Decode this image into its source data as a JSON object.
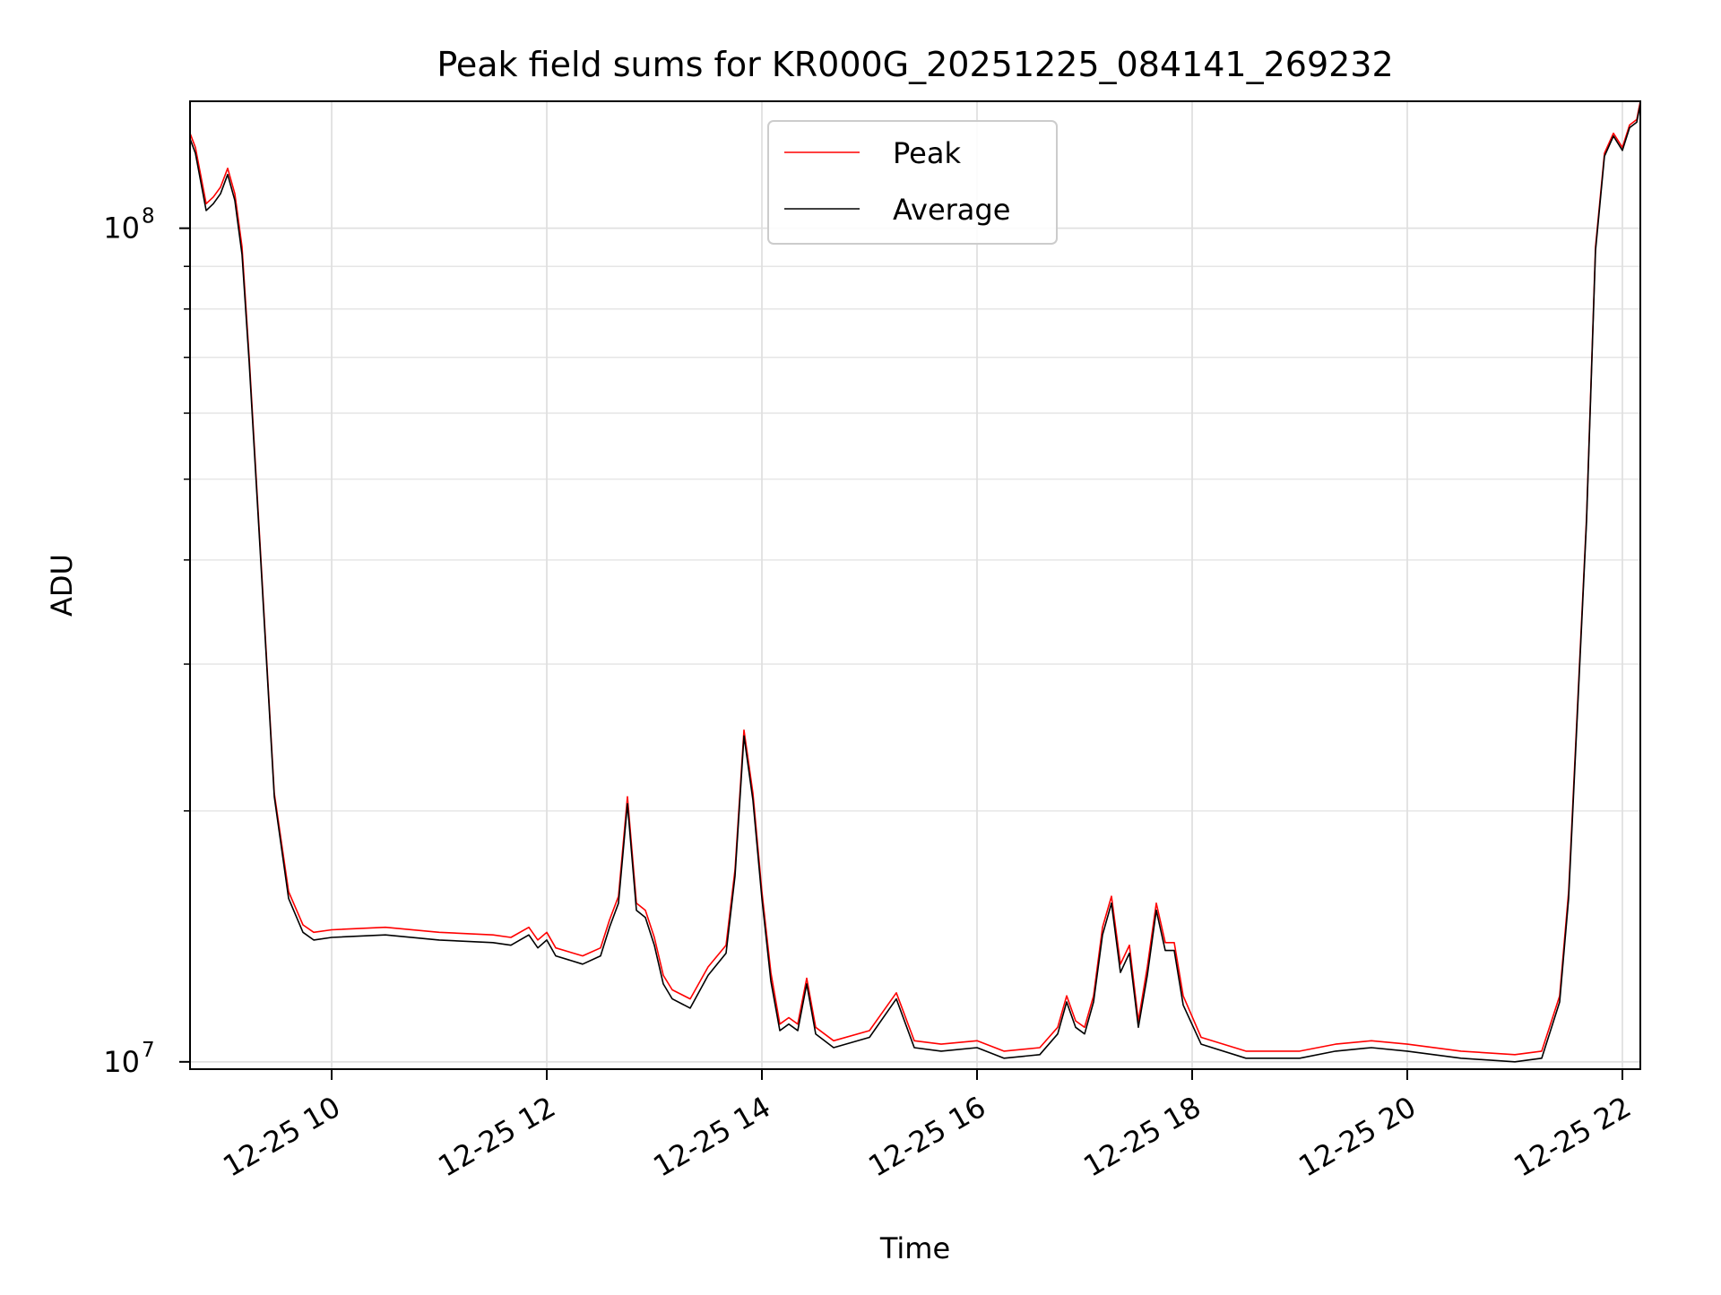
{
  "chart_data": {
    "type": "line",
    "title": "Peak field sums for KR000G_20251225_084141_269232",
    "xlabel": "Time",
    "ylabel": "ADU",
    "yscale": "log",
    "ylim": [
      9800000,
      142000000
    ],
    "xlim": [
      "2025-12-25 08:41",
      "2025-12-25 22:10"
    ],
    "x_ticks": [
      {
        "value": "2025-12-25 10:00",
        "label": "12-25 10"
      },
      {
        "value": "2025-12-25 12:00",
        "label": "12-25 12"
      },
      {
        "value": "2025-12-25 14:00",
        "label": "12-25 14"
      },
      {
        "value": "2025-12-25 16:00",
        "label": "12-25 16"
      },
      {
        "value": "2025-12-25 18:00",
        "label": "12-25 18"
      },
      {
        "value": "2025-12-25 20:00",
        "label": "12-25 20"
      },
      {
        "value": "2025-12-25 22:00",
        "label": "12-25 22"
      }
    ],
    "y_ticks": [
      {
        "value": 10000000,
        "base": "10",
        "exp": "7"
      },
      {
        "value": 100000000,
        "base": "10",
        "exp": "8"
      }
    ],
    "grid": true,
    "legend": "top-center",
    "colors": {
      "Peak": "#ff0000",
      "Average": "#000000"
    },
    "series": [
      {
        "name": "Peak",
        "x": [
          "2025-12-25 08:41",
          "2025-12-25 08:44",
          "2025-12-25 08:50",
          "2025-12-25 08:54",
          "2025-12-25 08:58",
          "2025-12-25 09:02",
          "2025-12-25 09:06",
          "2025-12-25 09:10",
          "2025-12-25 09:14",
          "2025-12-25 09:20",
          "2025-12-25 09:28",
          "2025-12-25 09:36",
          "2025-12-25 09:44",
          "2025-12-25 09:50",
          "2025-12-25 10:00",
          "2025-12-25 10:30",
          "2025-12-25 11:00",
          "2025-12-25 11:30",
          "2025-12-25 11:40",
          "2025-12-25 11:50",
          "2025-12-25 11:55",
          "2025-12-25 12:00",
          "2025-12-25 12:05",
          "2025-12-25 12:20",
          "2025-12-25 12:30",
          "2025-12-25 12:35",
          "2025-12-25 12:40",
          "2025-12-25 12:45",
          "2025-12-25 12:50",
          "2025-12-25 12:55",
          "2025-12-25 13:00",
          "2025-12-25 13:05",
          "2025-12-25 13:10",
          "2025-12-25 13:20",
          "2025-12-25 13:30",
          "2025-12-25 13:40",
          "2025-12-25 13:45",
          "2025-12-25 13:50",
          "2025-12-25 13:55",
          "2025-12-25 14:00",
          "2025-12-25 14:05",
          "2025-12-25 14:10",
          "2025-12-25 14:15",
          "2025-12-25 14:20",
          "2025-12-25 14:25",
          "2025-12-25 14:30",
          "2025-12-25 14:40",
          "2025-12-25 15:00",
          "2025-12-25 15:15",
          "2025-12-25 15:25",
          "2025-12-25 15:40",
          "2025-12-25 16:00",
          "2025-12-25 16:15",
          "2025-12-25 16:35",
          "2025-12-25 16:45",
          "2025-12-25 16:50",
          "2025-12-25 16:55",
          "2025-12-25 17:00",
          "2025-12-25 17:05",
          "2025-12-25 17:10",
          "2025-12-25 17:15",
          "2025-12-25 17:20",
          "2025-12-25 17:25",
          "2025-12-25 17:30",
          "2025-12-25 17:35",
          "2025-12-25 17:40",
          "2025-12-25 17:45",
          "2025-12-25 17:50",
          "2025-12-25 17:55",
          "2025-12-25 18:05",
          "2025-12-25 18:30",
          "2025-12-25 19:00",
          "2025-12-25 19:20",
          "2025-12-25 19:40",
          "2025-12-25 20:00",
          "2025-12-25 20:30",
          "2025-12-25 21:00",
          "2025-12-25 21:15",
          "2025-12-25 21:25",
          "2025-12-25 21:30",
          "2025-12-25 21:40",
          "2025-12-25 21:45",
          "2025-12-25 21:50",
          "2025-12-25 21:55",
          "2025-12-25 22:00",
          "2025-12-25 22:04",
          "2025-12-25 22:08",
          "2025-12-25 22:10"
        ],
        "y": [
          130000000,
          125000000,
          107000000,
          109000000,
          112000000,
          118000000,
          110000000,
          95000000,
          70000000,
          42000000,
          21000000,
          16000000,
          14600000,
          14300000,
          14400000,
          14500000,
          14300000,
          14200000,
          14100000,
          14500000,
          14000000,
          14300000,
          13700000,
          13400000,
          13700000,
          14800000,
          15800000,
          20800000,
          15500000,
          15200000,
          14100000,
          12700000,
          12200000,
          11900000,
          13000000,
          13800000,
          17000000,
          25000000,
          21000000,
          16000000,
          12800000,
          11100000,
          11300000,
          11100000,
          12600000,
          11000000,
          10600000,
          10900000,
          12100000,
          10600000,
          10500000,
          10600000,
          10300000,
          10400000,
          11000000,
          12000000,
          11200000,
          11000000,
          12000000,
          14500000,
          15800000,
          13100000,
          13800000,
          11200000,
          13000000,
          15500000,
          13900000,
          13900000,
          12000000,
          10700000,
          10300000,
          10300000,
          10500000,
          10600000,
          10500000,
          10300000,
          10200000,
          10300000,
          12000000,
          16000000,
          45000000,
          95000000,
          123000000,
          130000000,
          125000000,
          133000000,
          135000000,
          142000000
        ]
      },
      {
        "name": "Average",
        "x": [
          "2025-12-25 08:41",
          "2025-12-25 08:44",
          "2025-12-25 08:50",
          "2025-12-25 08:54",
          "2025-12-25 08:58",
          "2025-12-25 09:02",
          "2025-12-25 09:06",
          "2025-12-25 09:10",
          "2025-12-25 09:14",
          "2025-12-25 09:20",
          "2025-12-25 09:28",
          "2025-12-25 09:36",
          "2025-12-25 09:44",
          "2025-12-25 09:50",
          "2025-12-25 10:00",
          "2025-12-25 10:30",
          "2025-12-25 11:00",
          "2025-12-25 11:30",
          "2025-12-25 11:40",
          "2025-12-25 11:50",
          "2025-12-25 11:55",
          "2025-12-25 12:00",
          "2025-12-25 12:05",
          "2025-12-25 12:20",
          "2025-12-25 12:30",
          "2025-12-25 12:35",
          "2025-12-25 12:40",
          "2025-12-25 12:45",
          "2025-12-25 12:50",
          "2025-12-25 12:55",
          "2025-12-25 13:00",
          "2025-12-25 13:05",
          "2025-12-25 13:10",
          "2025-12-25 13:20",
          "2025-12-25 13:30",
          "2025-12-25 13:40",
          "2025-12-25 13:45",
          "2025-12-25 13:50",
          "2025-12-25 13:55",
          "2025-12-25 14:00",
          "2025-12-25 14:05",
          "2025-12-25 14:10",
          "2025-12-25 14:15",
          "2025-12-25 14:20",
          "2025-12-25 14:25",
          "2025-12-25 14:30",
          "2025-12-25 14:40",
          "2025-12-25 15:00",
          "2025-12-25 15:15",
          "2025-12-25 15:25",
          "2025-12-25 15:40",
          "2025-12-25 16:00",
          "2025-12-25 16:15",
          "2025-12-25 16:35",
          "2025-12-25 16:45",
          "2025-12-25 16:50",
          "2025-12-25 16:55",
          "2025-12-25 17:00",
          "2025-12-25 17:05",
          "2025-12-25 17:10",
          "2025-12-25 17:15",
          "2025-12-25 17:20",
          "2025-12-25 17:25",
          "2025-12-25 17:30",
          "2025-12-25 17:35",
          "2025-12-25 17:40",
          "2025-12-25 17:45",
          "2025-12-25 17:50",
          "2025-12-25 17:55",
          "2025-12-25 18:05",
          "2025-12-25 18:30",
          "2025-12-25 19:00",
          "2025-12-25 19:20",
          "2025-12-25 19:40",
          "2025-12-25 20:00",
          "2025-12-25 20:30",
          "2025-12-25 21:00",
          "2025-12-25 21:15",
          "2025-12-25 21:25",
          "2025-12-25 21:30",
          "2025-12-25 21:40",
          "2025-12-25 21:45",
          "2025-12-25 21:50",
          "2025-12-25 21:55",
          "2025-12-25 22:00",
          "2025-12-25 22:04",
          "2025-12-25 22:08",
          "2025-12-25 22:10"
        ],
        "y": [
          128000000,
          123000000,
          105000000,
          107000000,
          110000000,
          116000000,
          108000000,
          93000000,
          69000000,
          41500000,
          20800000,
          15700000,
          14300000,
          14000000,
          14100000,
          14200000,
          14000000,
          13900000,
          13800000,
          14200000,
          13700000,
          14000000,
          13400000,
          13100000,
          13400000,
          14500000,
          15500000,
          20400000,
          15200000,
          14900000,
          13800000,
          12400000,
          11900000,
          11600000,
          12700000,
          13500000,
          16700000,
          24600000,
          20600000,
          15700000,
          12500000,
          10900000,
          11100000,
          10900000,
          12400000,
          10800000,
          10400000,
          10700000,
          11900000,
          10400000,
          10300000,
          10400000,
          10100000,
          10200000,
          10800000,
          11800000,
          11000000,
          10800000,
          11800000,
          14200000,
          15500000,
          12800000,
          13500000,
          11000000,
          12700000,
          15200000,
          13600000,
          13600000,
          11700000,
          10500000,
          10100000,
          10100000,
          10300000,
          10400000,
          10300000,
          10100000,
          10000000,
          10100000,
          11800000,
          15700000,
          44500000,
          94000000,
          122000000,
          129000000,
          124000000,
          132000000,
          134000000,
          141000000
        ]
      }
    ]
  }
}
